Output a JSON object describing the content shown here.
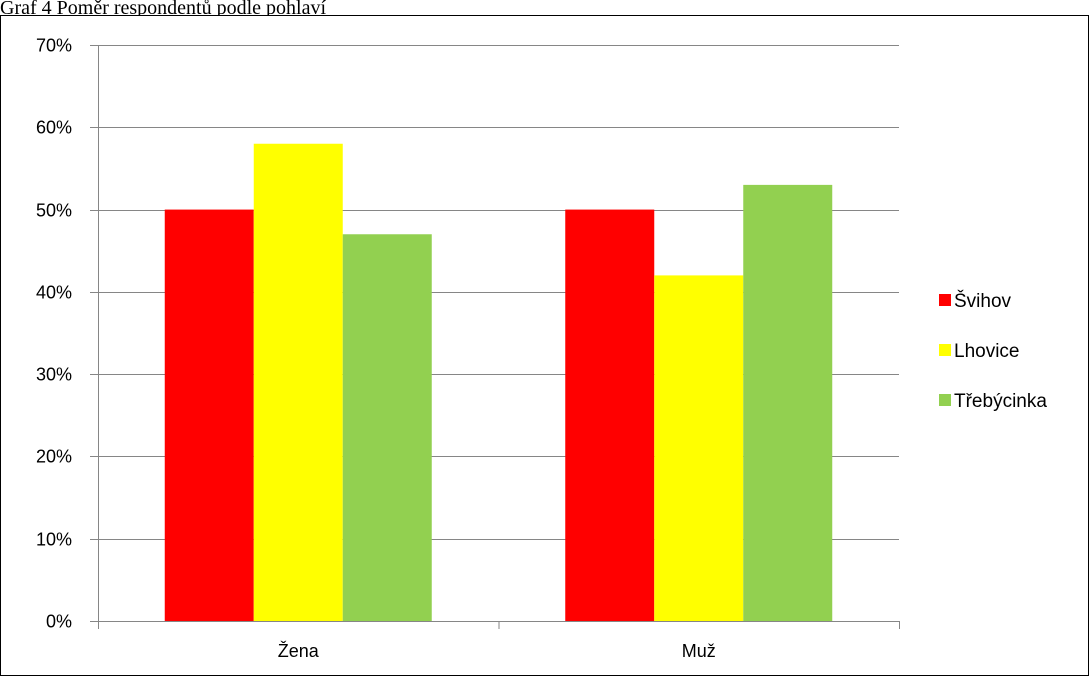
{
  "caption": "Graf 4 Poměr respondentů podle pohlaví",
  "chart_data": {
    "type": "bar",
    "categories": [
      "Žena",
      "Muž"
    ],
    "series": [
      {
        "name": "Švihov",
        "color": "#ff0000",
        "values": [
          50,
          50
        ]
      },
      {
        "name": "Lhovice",
        "color": "#ffff00",
        "values": [
          58,
          42
        ]
      },
      {
        "name": "Třebýcinka",
        "color": "#92d050",
        "values": [
          47,
          53
        ]
      }
    ],
    "y_ticks": [
      0,
      10,
      20,
      30,
      40,
      50,
      60,
      70
    ],
    "y_tick_labels": [
      "0%",
      "10%",
      "20%",
      "30%",
      "40%",
      "50%",
      "60%",
      "70%"
    ],
    "ylim": [
      0,
      70
    ],
    "grid": true,
    "legend_position": "right"
  }
}
